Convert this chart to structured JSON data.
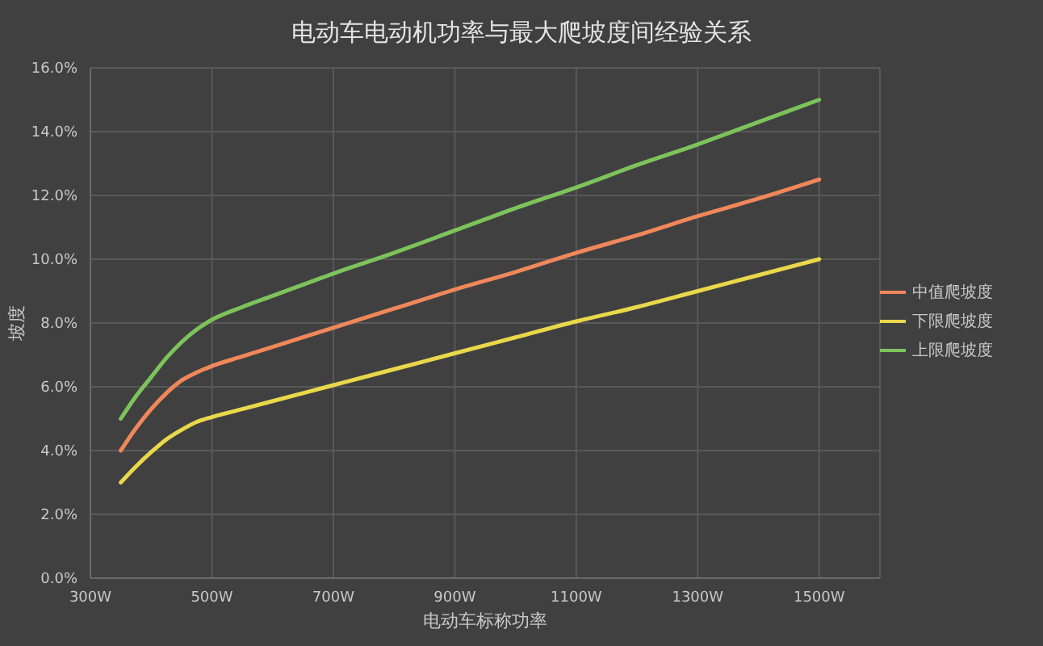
{
  "chart_data": {
    "type": "line",
    "title": "电动车电动机功率与最大爬坡度间经验关系",
    "xlabel": "电动车标称功率",
    "ylabel": "坡度",
    "x": [
      350,
      375,
      400,
      425,
      450,
      475,
      500,
      550,
      600,
      700,
      800,
      900,
      1000,
      1100,
      1200,
      1300,
      1400,
      1500
    ],
    "xlim": [
      300,
      1600
    ],
    "xticks": [
      {
        "value": 300,
        "label": "300W"
      },
      {
        "value": 500,
        "label": "500W"
      },
      {
        "value": 700,
        "label": "700W"
      },
      {
        "value": 900,
        "label": "900W"
      },
      {
        "value": 1100,
        "label": "1100W"
      },
      {
        "value": 1300,
        "label": "1300W"
      },
      {
        "value": 1500,
        "label": "1500W"
      }
    ],
    "ylim": [
      0,
      16
    ],
    "yticks": [
      {
        "value": 0,
        "label": "0.0%"
      },
      {
        "value": 2,
        "label": "2.0%"
      },
      {
        "value": 4,
        "label": "4.0%"
      },
      {
        "value": 6,
        "label": "6.0%"
      },
      {
        "value": 8,
        "label": "8.0%"
      },
      {
        "value": 10,
        "label": "10.0%"
      },
      {
        "value": 12,
        "label": "12.0%"
      },
      {
        "value": 14,
        "label": "14.0%"
      },
      {
        "value": 16,
        "label": "16.0%"
      }
    ],
    "grid": true,
    "legend": "right",
    "series": [
      {
        "name": "中值爬坡度",
        "color": "#f0875a",
        "values": [
          4.0,
          4.7,
          5.3,
          5.8,
          6.2,
          6.45,
          6.65,
          6.95,
          7.25,
          7.85,
          8.45,
          9.05,
          9.6,
          10.2,
          10.75,
          11.35,
          11.9,
          12.5
        ]
      },
      {
        "name": "下限爬坡度",
        "color": "#e8d84a",
        "values": [
          3.0,
          3.5,
          3.95,
          4.35,
          4.65,
          4.9,
          5.05,
          5.3,
          5.55,
          6.05,
          6.55,
          7.05,
          7.55,
          8.05,
          8.5,
          9.0,
          9.5,
          10.0
        ]
      },
      {
        "name": "上限爬坡度",
        "color": "#7dc35b",
        "values": [
          5.0,
          5.7,
          6.3,
          6.9,
          7.4,
          7.8,
          8.1,
          8.5,
          8.85,
          9.55,
          10.2,
          10.9,
          11.6,
          12.25,
          12.95,
          13.6,
          14.3,
          15.0
        ]
      }
    ]
  }
}
